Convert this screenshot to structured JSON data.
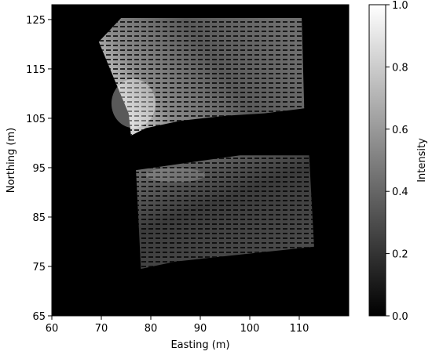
{
  "chart_data": {
    "type": "heatmap",
    "xlabel": "Easting (m)",
    "ylabel": "Northing (m)",
    "xlim": [
      60,
      120
    ],
    "ylim": [
      65,
      128
    ],
    "xticks": [
      60,
      70,
      80,
      90,
      100,
      110
    ],
    "yticks": [
      65,
      75,
      85,
      95,
      105,
      115,
      125
    ],
    "colorbar": {
      "label": "Intensity",
      "range": [
        0.0,
        1.0
      ],
      "ticks": [
        "0.0",
        "0.2",
        "0.4",
        "0.6",
        "0.8",
        "1.0"
      ],
      "colormap": "gray"
    },
    "background_intensity": 0.0,
    "regions": [
      {
        "name": "upper patch",
        "polygon": [
          [
            69.5,
            120.5
          ],
          [
            74,
            125.3
          ],
          [
            110.5,
            125.3
          ],
          [
            111,
            107
          ],
          [
            103,
            106
          ],
          [
            95,
            105.5
          ],
          [
            86,
            104.5
          ],
          [
            79,
            103
          ],
          [
            76,
            101.5
          ],
          [
            75.5,
            106
          ],
          [
            73,
            112
          ]
        ],
        "mean_intensity": 0.3,
        "brightest_area": [
          [
            73,
            112
          ],
          [
            80,
            104
          ]
        ]
      },
      {
        "name": "lower patch",
        "polygon": [
          [
            77,
            94.5
          ],
          [
            98,
            97.5
          ],
          [
            112,
            97.5
          ],
          [
            113,
            79
          ],
          [
            85,
            76
          ],
          [
            78,
            74.5
          ]
        ],
        "mean_intensity": 0.22,
        "brightest_area": [
          [
            80,
            93
          ],
          [
            90,
            94
          ]
        ]
      }
    ],
    "grid": false,
    "legend": "none"
  },
  "axes": {
    "x_tick_labels": [
      "60",
      "70",
      "80",
      "90",
      "100",
      "110"
    ],
    "y_tick_labels": [
      "65",
      "75",
      "85",
      "95",
      "105",
      "115",
      "125"
    ],
    "colorbar_tick_labels": [
      "0.0",
      "0.2",
      "0.4",
      "0.6",
      "0.8",
      "1.0"
    ]
  }
}
